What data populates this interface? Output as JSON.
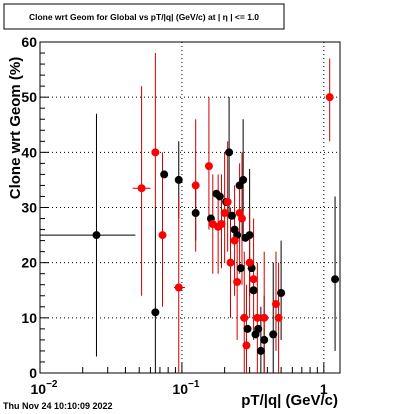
{
  "chart_data": {
    "type": "scatter",
    "title": "Clone wrt Geom for Global vs pT/|q| (GeV/c) at | η | <= 1.0",
    "xlabel": "pT/|q| (GeV/c)",
    "ylabel": "Clone wrt Geom (%)",
    "x_scale": "log",
    "xlim": [
      0.01,
      1.3
    ],
    "ylim": [
      0,
      60
    ],
    "x_ticks": [
      {
        "value": 0.01,
        "base": "10",
        "exp": "−2"
      },
      {
        "value": 0.1,
        "base": "10",
        "exp": "−1"
      },
      {
        "value": 1,
        "base": "1",
        "exp": ""
      }
    ],
    "y_ticks": [
      "0",
      "10",
      "20",
      "30",
      "40",
      "50",
      "60"
    ],
    "grid": true,
    "timestamp": "Thu Nov 24 10:10:09 2022",
    "series": [
      {
        "color": "#000000",
        "errcolor": "#000000",
        "points": [
          {
            "x": 0.025,
            "y": 25,
            "xlo": 0.0095,
            "xhi": 0.047,
            "ylo": 3,
            "yhi": 47
          },
          {
            "x": 0.065,
            "y": 11,
            "ylo": 0,
            "yhi": 30
          },
          {
            "x": 0.075,
            "y": 36
          },
          {
            "x": 0.095,
            "y": 35,
            "ylo": 28,
            "yhi": 42
          },
          {
            "x": 0.125,
            "y": 29,
            "ylo": 24,
            "yhi": 34
          },
          {
            "x": 0.16,
            "y": 28
          },
          {
            "x": 0.175,
            "y": 32.5
          },
          {
            "x": 0.185,
            "y": 32
          },
          {
            "x": 0.205,
            "y": 31
          },
          {
            "x": 0.215,
            "y": 40,
            "ylo": 28,
            "yhi": 50
          },
          {
            "x": 0.225,
            "y": 28.5
          },
          {
            "x": 0.235,
            "y": 26
          },
          {
            "x": 0.245,
            "y": 25
          },
          {
            "x": 0.255,
            "y": 34
          },
          {
            "x": 0.26,
            "y": 19
          },
          {
            "x": 0.27,
            "y": 35,
            "ylo": 25,
            "yhi": 46
          },
          {
            "x": 0.28,
            "y": 24.5
          },
          {
            "x": 0.29,
            "y": 8
          },
          {
            "x": 0.3,
            "y": 25,
            "ylo": 14,
            "yhi": 37
          },
          {
            "x": 0.31,
            "y": 19
          },
          {
            "x": 0.32,
            "y": 15
          },
          {
            "x": 0.33,
            "y": 7
          },
          {
            "x": 0.345,
            "y": 8
          },
          {
            "x": 0.36,
            "y": 4,
            "ylo": 0,
            "yhi": 12
          },
          {
            "x": 0.38,
            "y": 6,
            "ylo": 0,
            "yhi": 14
          },
          {
            "x": 0.44,
            "y": 7,
            "ylo": 0,
            "yhi": 20
          },
          {
            "x": 0.5,
            "y": 14.5,
            "ylo": 6,
            "yhi": 24
          },
          {
            "x": 1.2,
            "y": 17,
            "ylo": 4,
            "yhi": 32
          }
        ]
      },
      {
        "color": "#ff0000",
        "errcolor": "#cc0000",
        "points": [
          {
            "x": 0.052,
            "y": 33.5,
            "xlo": 0.045,
            "xhi": 0.06,
            "ylo": 14,
            "yhi": 52
          },
          {
            "x": 0.065,
            "y": 40,
            "ylo": 30,
            "yhi": 58
          },
          {
            "x": 0.073,
            "y": 25,
            "ylo": 12,
            "yhi": 40
          },
          {
            "x": 0.095,
            "y": 15.5,
            "xlo": 0.088,
            "xhi": 0.105,
            "ylo": 0,
            "yhi": 32
          },
          {
            "x": 0.125,
            "y": 34,
            "xlo": 0.118,
            "xhi": 0.133,
            "ylo": 22,
            "yhi": 46
          },
          {
            "x": 0.155,
            "y": 37.5,
            "ylo": 26,
            "yhi": 50
          },
          {
            "x": 0.165,
            "y": 27,
            "ylo": 18,
            "yhi": 36
          },
          {
            "x": 0.18,
            "y": 26.5,
            "ylo": 18,
            "yhi": 36
          },
          {
            "x": 0.19,
            "y": 27,
            "ylo": 19,
            "yhi": 36
          },
          {
            "x": 0.2,
            "y": 29,
            "ylo": 20,
            "yhi": 40
          },
          {
            "x": 0.21,
            "y": 31,
            "ylo": 22,
            "yhi": 42
          },
          {
            "x": 0.22,
            "y": 20,
            "ylo": 10,
            "yhi": 30
          },
          {
            "x": 0.235,
            "y": 24,
            "ylo": 14,
            "yhi": 34
          },
          {
            "x": 0.245,
            "y": 16.5,
            "ylo": 6,
            "yhi": 26
          },
          {
            "x": 0.255,
            "y": 29,
            "ylo": 18,
            "yhi": 38
          },
          {
            "x": 0.265,
            "y": 28,
            "ylo": 16,
            "yhi": 40
          },
          {
            "x": 0.275,
            "y": 10,
            "ylo": 0,
            "yhi": 22
          },
          {
            "x": 0.285,
            "y": 5,
            "ylo": 0,
            "yhi": 16
          },
          {
            "x": 0.3,
            "y": 20,
            "ylo": 10,
            "yhi": 30
          },
          {
            "x": 0.32,
            "y": 17,
            "ylo": 6,
            "yhi": 28
          },
          {
            "x": 0.34,
            "y": 10,
            "ylo": 0,
            "yhi": 20
          },
          {
            "x": 0.38,
            "y": 10,
            "ylo": 0,
            "yhi": 22
          },
          {
            "x": 0.46,
            "y": 12.5,
            "ylo": 4,
            "yhi": 22
          },
          {
            "x": 0.48,
            "y": 10,
            "ylo": 0,
            "yhi": 20
          },
          {
            "x": 1.1,
            "y": 50,
            "ylo": 42,
            "yhi": 57
          }
        ]
      }
    ]
  }
}
